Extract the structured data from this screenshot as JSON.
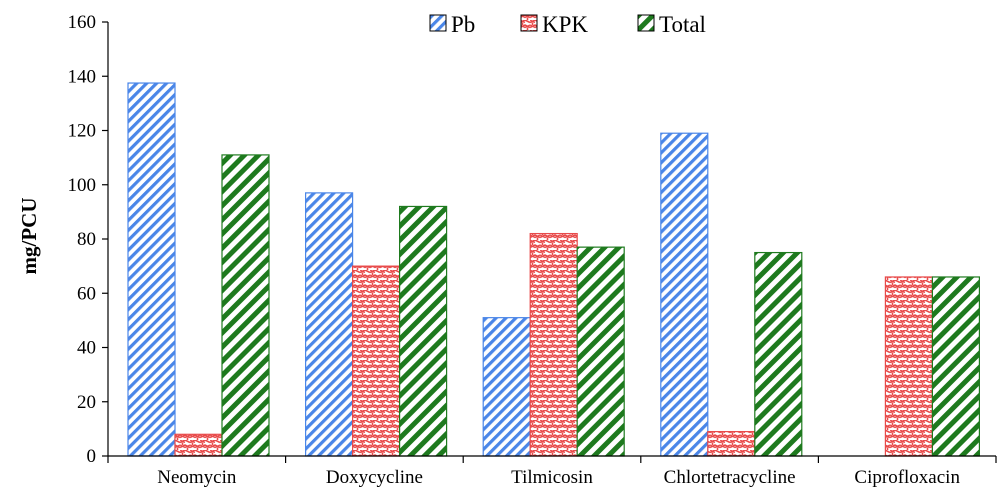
{
  "chart_data": {
    "type": "bar",
    "title": "",
    "xlabel": "",
    "ylabel": "mg/PCU",
    "ylim": [
      0,
      160
    ],
    "yticks": [
      0,
      20,
      40,
      60,
      80,
      100,
      120,
      140,
      160
    ],
    "grid": false,
    "legend_position": "top-center",
    "categories": [
      "Neomycin",
      "Doxycycline",
      "Tilmicosin",
      "Chlortetracycline",
      "Ciprofloxacin"
    ],
    "series": [
      {
        "name": "Pb",
        "color": "#4a86e8",
        "pattern": "diagonal-stripes",
        "values": [
          137.5,
          97,
          51,
          119,
          0
        ]
      },
      {
        "name": "KPK",
        "color": "#e84a4a",
        "pattern": "brick-weave",
        "values": [
          8,
          70,
          82,
          9,
          66
        ]
      },
      {
        "name": "Total",
        "color": "#1e7a1e",
        "pattern": "diagonal-stripes-wide",
        "values": [
          111,
          92,
          77,
          75,
          66
        ]
      }
    ]
  }
}
